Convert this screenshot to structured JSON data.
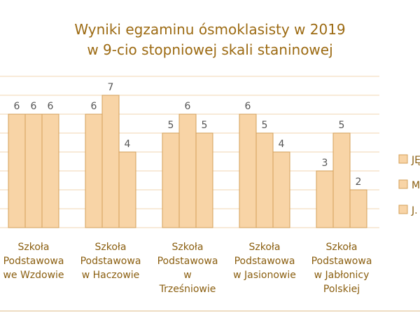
{
  "chart_data": {
    "type": "bar",
    "title_line1": "Wyniki egzaminu ósmoklasisty w 2019",
    "title_line2": "w 9-cio stopniowej skali staninowej",
    "categories": [
      [
        "Szkoła",
        "Podstawowa",
        "we Wzdowie"
      ],
      [
        "Szkoła",
        "Podstawowa",
        "w Haczowie"
      ],
      [
        "Szkoła",
        "Podstawowa",
        "w",
        "Trześniowie"
      ],
      [
        "Szkoła",
        "Podstawowa",
        "w Jasionowie"
      ],
      [
        "Szkoła",
        "Podstawowa",
        "w Jabłonicy",
        "Polskiej"
      ]
    ],
    "series": [
      {
        "name": "JĘ",
        "values": [
          6,
          6,
          5,
          6,
          3
        ]
      },
      {
        "name": "M",
        "values": [
          6,
          7,
          6,
          5,
          5
        ]
      },
      {
        "name": "J.",
        "values": [
          6,
          4,
          5,
          4,
          2
        ]
      }
    ],
    "ylim": [
      0,
      8
    ],
    "grid": true,
    "legend": "right",
    "colors": {
      "title": "#9c6a12",
      "label": "#8a5e0f",
      "bar_fill": "#f8d4a6",
      "bar_stroke": "#d3a05a",
      "grid": "#f1d6b2",
      "frame": "#eedcc2"
    }
  }
}
